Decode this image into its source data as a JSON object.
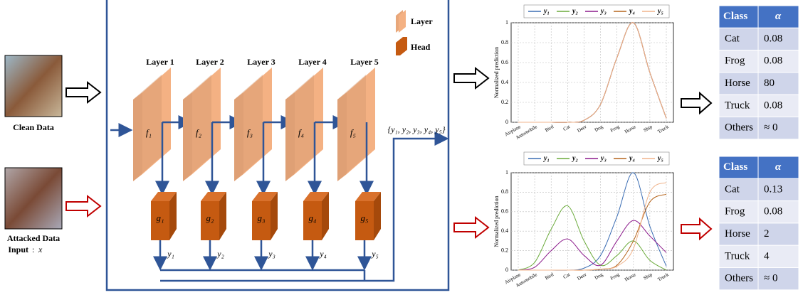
{
  "inputs": {
    "clean": "Clean Data",
    "attacked": "Attacked Data",
    "input_label": "Input",
    "input_var": "x"
  },
  "legend": {
    "layer": "Layer",
    "head": "Head"
  },
  "layers": [
    {
      "title": "Layer 1",
      "f": "f₁",
      "g": "g₁",
      "y": "y₁"
    },
    {
      "title": "Layer 2",
      "f": "f₂",
      "g": "g₂",
      "y": "y₂"
    },
    {
      "title": "Layer 3",
      "f": "f₃",
      "g": "g₃",
      "y": "y₃"
    },
    {
      "title": "Layer 4",
      "f": "f₄",
      "g": "g₄",
      "y": "y₄"
    },
    {
      "title": "Layer 5",
      "f": "f₅",
      "g": "g₅",
      "y": "y₅"
    }
  ],
  "output": "{y₁, y₂, y₃, y₄, y₅}",
  "charts": [
    {
      "type": "line",
      "ylabel": "Normalized prediction",
      "categories": [
        "Airplane",
        "Automobile",
        "Bird",
        "Cat",
        "Deer",
        "Dog",
        "Frog",
        "Horse",
        "Ship",
        "Truck"
      ],
      "ylim": [
        0,
        1
      ],
      "yticks": [
        0,
        0.2,
        0.4,
        0.6,
        0.8,
        1
      ],
      "grid": true,
      "series": [
        {
          "name": "y₁",
          "color": "#3c6eb4",
          "values": [
            0,
            0,
            0,
            0,
            0.02,
            0.18,
            0.65,
            1,
            0.5,
            0.04
          ]
        },
        {
          "name": "y₂",
          "color": "#6aaa3a",
          "values": [
            0,
            0,
            0,
            0,
            0.02,
            0.18,
            0.65,
            1,
            0.5,
            0.04
          ]
        },
        {
          "name": "y₃",
          "color": "#8b1a8b",
          "values": [
            0,
            0,
            0,
            0,
            0.02,
            0.18,
            0.65,
            1,
            0.5,
            0.04
          ]
        },
        {
          "name": "y₄",
          "color": "#b5651d",
          "values": [
            0,
            0,
            0,
            0,
            0.02,
            0.18,
            0.65,
            1,
            0.5,
            0.04
          ]
        },
        {
          "name": "y₅",
          "color": "#f0b48c",
          "values": [
            0,
            0,
            0,
            0,
            0.02,
            0.18,
            0.65,
            1,
            0.5,
            0.04
          ]
        }
      ]
    },
    {
      "type": "line",
      "ylabel": "Normalized prediction",
      "categories": [
        "Airplane",
        "Automobile",
        "Bird",
        "Cat",
        "Deer",
        "Dog",
        "Frog",
        "Horse",
        "Ship",
        "Truck"
      ],
      "ylim": [
        0,
        1
      ],
      "yticks": [
        0,
        0.2,
        0.4,
        0.6,
        0.8,
        1
      ],
      "grid": true,
      "series": [
        {
          "name": "y₁",
          "color": "#3c6eb4",
          "values": [
            0,
            0,
            0,
            0,
            0.02,
            0.15,
            0.55,
            1,
            0.45,
            0.04
          ]
        },
        {
          "name": "y₂",
          "color": "#6aaa3a",
          "values": [
            0,
            0.08,
            0.42,
            0.66,
            0.3,
            0.05,
            0.15,
            0.3,
            0.1,
            0
          ]
        },
        {
          "name": "y₃",
          "color": "#8b1a8b",
          "values": [
            0,
            0.03,
            0.2,
            0.32,
            0.15,
            0.05,
            0.3,
            0.51,
            0.35,
            0.18
          ]
        },
        {
          "name": "y₄",
          "color": "#b5651d",
          "values": [
            0,
            0,
            0,
            0,
            0,
            0.01,
            0.05,
            0.3,
            0.7,
            0.78
          ]
        },
        {
          "name": "y₅",
          "color": "#f0b48c",
          "values": [
            0,
            0,
            0,
            0,
            0,
            0.01,
            0.04,
            0.22,
            0.8,
            0.9
          ]
        }
      ]
    }
  ],
  "tables": [
    {
      "header": [
        "Class",
        "α"
      ],
      "rows": [
        [
          "Cat",
          "0.08"
        ],
        [
          "Frog",
          "0.08"
        ],
        [
          "Horse",
          "80"
        ],
        [
          "Truck",
          "0.08"
        ],
        [
          "Others",
          "≈ 0"
        ]
      ]
    },
    {
      "header": [
        "Class",
        "α"
      ],
      "rows": [
        [
          "Cat",
          "0.13"
        ],
        [
          "Frog",
          "0.08"
        ],
        [
          "Horse",
          "2"
        ],
        [
          "Truck",
          "4"
        ],
        [
          "Others",
          "≈ 0"
        ]
      ]
    }
  ]
}
